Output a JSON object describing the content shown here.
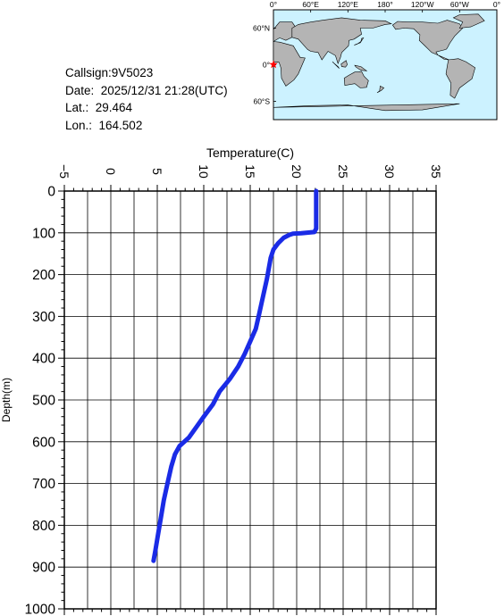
{
  "info": {
    "callsign": "Callsign:9V5023",
    "date": "Date:  2025/12/31 21:28(UTC)",
    "lat": "Lat.:  29.464",
    "lon": "Lon.:  164.502"
  },
  "map": {
    "top_labels": [
      "0°",
      "60°E",
      "120°E",
      "180°",
      "120°W",
      "60°W",
      "0°"
    ],
    "left_labels": [
      "60°N",
      "0°",
      "60°S"
    ],
    "marker_color": "#ff0000",
    "land_color": "#b4b4b4",
    "ocean_color": "#ccf2ff"
  },
  "chart_data": {
    "type": "line",
    "xlabel": "Temperature(C)",
    "ylabel": "Depth(m)",
    "xlim": [
      -5,
      35
    ],
    "ylim": [
      0,
      1000
    ],
    "y_inverted": true,
    "x_ticks": [
      "-5",
      "0",
      "5",
      "10",
      "15",
      "20",
      "25",
      "30",
      "35"
    ],
    "y_ticks": [
      "0",
      "100",
      "200",
      "300",
      "400",
      "500",
      "600",
      "700",
      "800",
      "900",
      "1000"
    ],
    "grid": true,
    "series": [
      {
        "color": "#1a2be6",
        "points": [
          [
            22.1,
            0
          ],
          [
            22.1,
            50
          ],
          [
            22.1,
            90
          ],
          [
            21.9,
            98
          ],
          [
            20.5,
            101
          ],
          [
            19.6,
            102
          ],
          [
            19.2,
            105
          ],
          [
            18.6,
            112
          ],
          [
            18.0,
            125
          ],
          [
            17.5,
            140
          ],
          [
            17.2,
            160
          ],
          [
            17.0,
            185
          ],
          [
            16.8,
            210
          ],
          [
            16.5,
            240
          ],
          [
            16.2,
            270
          ],
          [
            15.9,
            300
          ],
          [
            15.6,
            330
          ],
          [
            15.0,
            360
          ],
          [
            14.4,
            390
          ],
          [
            13.7,
            420
          ],
          [
            12.8,
            450
          ],
          [
            11.7,
            480
          ],
          [
            11.0,
            510
          ],
          [
            10.0,
            540
          ],
          [
            9.2,
            565
          ],
          [
            8.4,
            590
          ],
          [
            7.4,
            610
          ],
          [
            6.9,
            630
          ],
          [
            6.5,
            660
          ],
          [
            6.1,
            700
          ],
          [
            5.7,
            740
          ],
          [
            5.4,
            780
          ],
          [
            5.1,
            820
          ],
          [
            4.8,
            860
          ],
          [
            4.6,
            885
          ]
        ]
      }
    ]
  }
}
